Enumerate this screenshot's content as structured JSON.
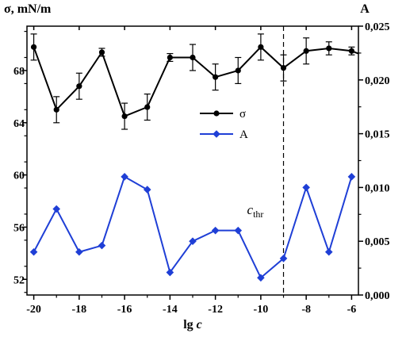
{
  "chart_data": {
    "type": "line",
    "xlabel": {
      "prefix": "lg",
      "var": "c"
    },
    "ylabel_left": "σ, mN/m",
    "ylabel_right": "A",
    "x": [
      -20,
      -19,
      -18,
      -17,
      -16,
      -15,
      -14,
      -13,
      -12,
      -11,
      -10,
      -9,
      -8,
      -7,
      -6
    ],
    "xlim": [
      -20.3,
      -5.7
    ],
    "xticks": [
      "-20",
      "-18",
      "-16",
      "-14",
      "-12",
      "-10",
      "-8",
      "-6"
    ],
    "xtick_values": [
      -20,
      -18,
      -16,
      -14,
      -12,
      -10,
      -8,
      -6
    ],
    "ylim_left": [
      50.8,
      71.4
    ],
    "yticks_left": [
      "52",
      "56",
      "60",
      "64",
      "68"
    ],
    "ytick_left_values": [
      52,
      56,
      60,
      64,
      68
    ],
    "ylim_right": [
      0.0,
      0.025
    ],
    "yticks_right": [
      "0,000",
      "0,005",
      "0,010",
      "0,015",
      "0,020",
      "0,025"
    ],
    "ytick_right_values": [
      0.0,
      0.005,
      0.01,
      0.015,
      0.02,
      0.025
    ],
    "series": [
      {
        "name": "σ",
        "axis": "left",
        "color": "#000000",
        "marker": "circle",
        "values": [
          69.8,
          65.0,
          66.8,
          69.4,
          64.5,
          65.2,
          69.0,
          69.0,
          67.5,
          68.0,
          69.8,
          68.2,
          69.5,
          69.7,
          69.5
        ],
        "errors": [
          1.0,
          1.0,
          1.0,
          0.3,
          1.0,
          1.0,
          0.3,
          1.0,
          1.0,
          1.0,
          1.0,
          1.0,
          1.0,
          0.5,
          0.3
        ]
      },
      {
        "name": "A",
        "axis": "right",
        "color": "#1f3fd6",
        "marker": "diamond",
        "values": [
          0.004,
          0.008,
          0.004,
          0.0046,
          0.011,
          0.0098,
          0.0021,
          0.005,
          0.006,
          0.006,
          0.0016,
          0.0034,
          0.01,
          0.004,
          0.011
        ]
      }
    ],
    "extra_sigma_end": 69.3,
    "threshold": {
      "x": -9,
      "label": "c",
      "label_sub": "thr",
      "style": "dashed"
    },
    "legend": {
      "placement": "center"
    },
    "grid": false
  }
}
